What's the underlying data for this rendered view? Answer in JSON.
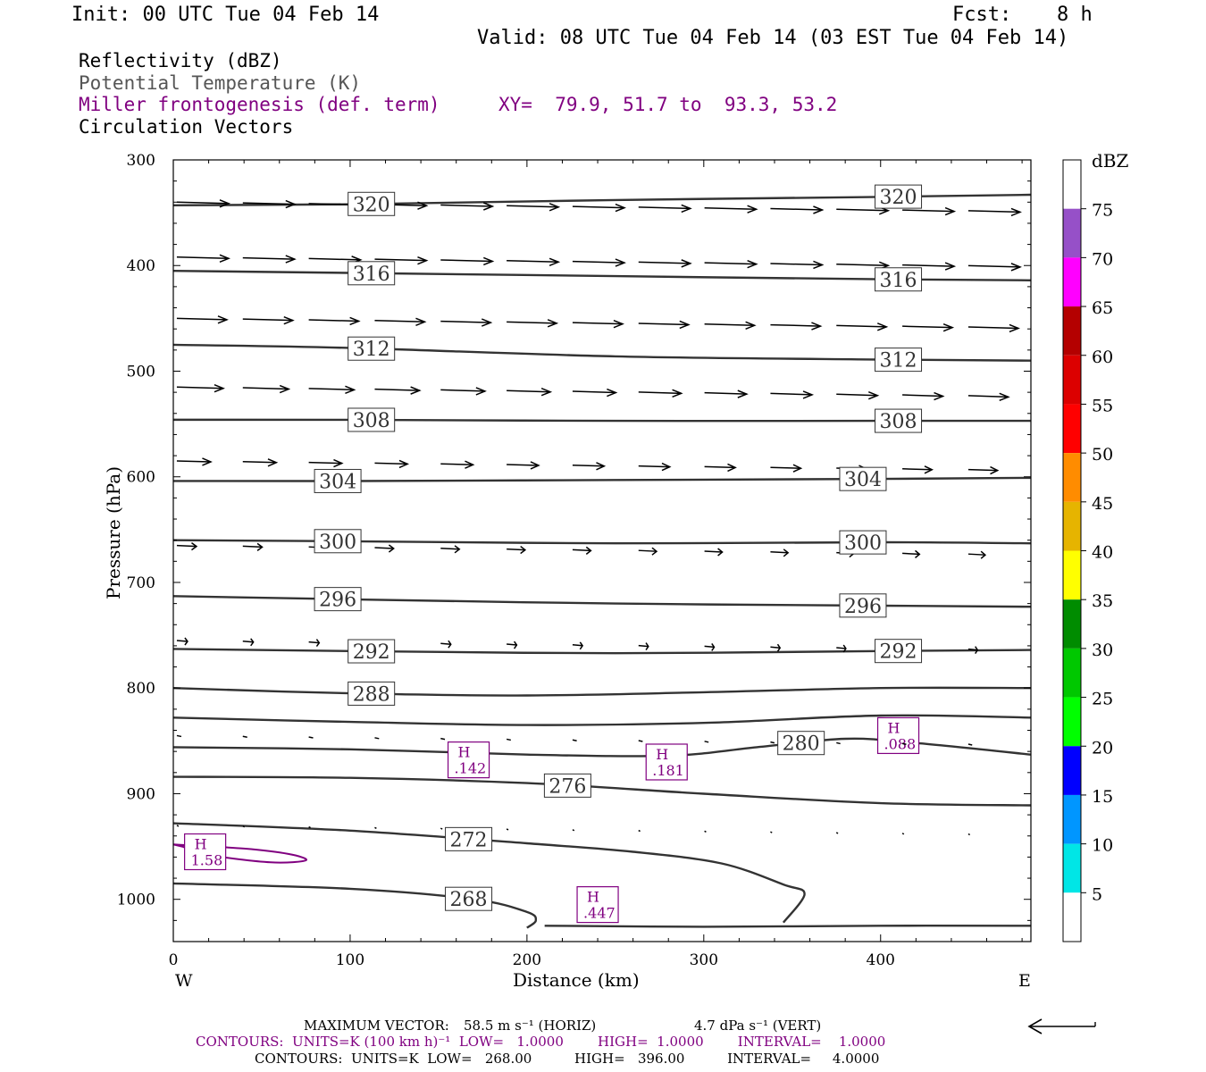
{
  "header": {
    "init": "Init: 00 UTC Tue 04 Feb 14",
    "fcst_label": "Fcst:",
    "fcst_value": "8 h",
    "valid": "Valid: 08 UTC Tue 04 Feb 14 (03 EST Tue 04 Feb 14)",
    "field1": "Reflectivity (dBZ)",
    "field2": "Potential Temperature (K)",
    "field3": "Miller frontogenesis (def. term)",
    "xy": "XY=  79.9, 51.7 to  93.3, 53.2",
    "field4": "Circulation Vectors"
  },
  "footer": {
    "max_vector_label": "MAXIMUM VECTOR:",
    "max_vector_horiz": "58.5 m s⁻¹ (HORIZ)",
    "max_vector_vert": "4.7 dPa s⁻¹ (VERT)",
    "contours_purple": "CONTOURS:  UNITS=K (100 km h)⁻¹  LOW=   1.0000        HIGH=  1.0000        INTERVAL=    1.0000",
    "contours_black": "CONTOURS:  UNITS=K  LOW=   268.00          HIGH=   396.00          INTERVAL=     4.0000"
  },
  "chart_data": {
    "type": "contour",
    "xlabel": "Distance (km)",
    "ylabel": "Pressure (hPa)",
    "x_left_label": "W",
    "x_right_label": "E",
    "xlim": [
      0,
      485
    ],
    "ylim": [
      300,
      1040
    ],
    "x_ticks": [
      0,
      100,
      200,
      300,
      400
    ],
    "y_ticks": [
      300,
      400,
      500,
      600,
      700,
      800,
      900,
      1000
    ],
    "theta_contours": [
      {
        "label": "320",
        "points": [
          [
            0,
            343
          ],
          [
            100,
            342
          ],
          [
            250,
            338
          ],
          [
            400,
            335
          ],
          [
            485,
            333
          ]
        ],
        "labels_at": [
          112,
          410
        ]
      },
      {
        "label": "316",
        "points": [
          [
            0,
            405
          ],
          [
            100,
            407
          ],
          [
            250,
            410
          ],
          [
            400,
            413
          ],
          [
            485,
            414
          ]
        ],
        "labels_at": [
          112,
          410
        ]
      },
      {
        "label": "312",
        "points": [
          [
            0,
            475
          ],
          [
            100,
            478
          ],
          [
            250,
            486
          ],
          [
            400,
            489
          ],
          [
            485,
            490
          ]
        ],
        "labels_at": [
          112,
          410
        ]
      },
      {
        "label": "308",
        "points": [
          [
            0,
            546
          ],
          [
            100,
            546
          ],
          [
            250,
            547
          ],
          [
            400,
            547
          ],
          [
            485,
            547
          ]
        ],
        "labels_at": [
          112,
          410
        ]
      },
      {
        "label": "304",
        "points": [
          [
            0,
            604
          ],
          [
            100,
            604
          ],
          [
            250,
            603
          ],
          [
            400,
            602
          ],
          [
            485,
            601
          ]
        ],
        "labels_at": [
          93,
          390
        ]
      },
      {
        "label": "300",
        "points": [
          [
            0,
            660
          ],
          [
            100,
            661
          ],
          [
            250,
            663
          ],
          [
            400,
            662
          ],
          [
            485,
            663
          ]
        ],
        "labels_at": [
          93,
          390
        ]
      },
      {
        "label": "296",
        "points": [
          [
            0,
            713
          ],
          [
            100,
            716
          ],
          [
            250,
            720
          ],
          [
            400,
            722
          ],
          [
            485,
            723
          ]
        ],
        "labels_at": [
          93,
          390
        ]
      },
      {
        "label": "292",
        "points": [
          [
            0,
            763
          ],
          [
            100,
            765
          ],
          [
            250,
            767
          ],
          [
            400,
            765
          ],
          [
            485,
            764
          ]
        ],
        "labels_at": [
          112,
          410
        ]
      },
      {
        "label": "288",
        "points": [
          [
            0,
            800
          ],
          [
            100,
            805
          ],
          [
            200,
            807
          ],
          [
            300,
            804
          ],
          [
            400,
            800
          ],
          [
            485,
            800
          ]
        ],
        "labels_at": [
          112
        ]
      },
      {
        "label": "",
        "points": [
          [
            0,
            828
          ],
          [
            100,
            832
          ],
          [
            200,
            835
          ],
          [
            300,
            833
          ],
          [
            400,
            826
          ],
          [
            485,
            828
          ]
        ],
        "labels_at": []
      },
      {
        "label": "280",
        "points": [
          [
            0,
            856
          ],
          [
            100,
            858
          ],
          [
            200,
            863
          ],
          [
            280,
            864
          ],
          [
            330,
            856
          ],
          [
            380,
            848
          ],
          [
            420,
            852
          ],
          [
            485,
            863
          ]
        ],
        "labels_at": [
          355
        ]
      },
      {
        "label": "276",
        "points": [
          [
            0,
            884
          ],
          [
            100,
            885
          ],
          [
            200,
            890
          ],
          [
            300,
            900
          ],
          [
            400,
            909
          ],
          [
            485,
            911
          ]
        ],
        "labels_at": [
          223
        ]
      },
      {
        "label": "272",
        "points": [
          [
            0,
            928
          ],
          [
            100,
            935
          ],
          [
            200,
            947
          ],
          [
            260,
            955
          ],
          [
            310,
            966
          ],
          [
            345,
            986
          ],
          [
            357,
            995
          ],
          [
            345,
            1022
          ]
        ],
        "labels_at": [
          167
        ]
      },
      {
        "label": "268",
        "points": [
          [
            0,
            985
          ],
          [
            100,
            990
          ],
          [
            170,
            1000
          ],
          [
            200,
            1012
          ],
          [
            205,
            1020
          ],
          [
            200,
            1027
          ]
        ],
        "labels_at": [
          167
        ]
      },
      {
        "label": "",
        "points": [
          [
            210,
            1025
          ],
          [
            300,
            1026
          ],
          [
            400,
            1025
          ],
          [
            485,
            1025
          ]
        ],
        "labels_at": []
      }
    ],
    "frontogenesis_maxima": [
      {
        "label": "H",
        "value": "1.58",
        "x": 18,
        "p": 955
      },
      {
        "label": "H",
        "value": ".142",
        "x": 167,
        "p": 868
      },
      {
        "label": "H",
        "value": ".181",
        "x": 279,
        "p": 870
      },
      {
        "label": "H",
        "value": ".088",
        "x": 410,
        "p": 845
      },
      {
        "label": "H",
        "value": ".447",
        "x": 240,
        "p": 1005
      }
    ],
    "frontogenesis_contour": {
      "points": [
        [
          0,
          948
        ],
        [
          40,
          952
        ],
        [
          65,
          957
        ],
        [
          75,
          963
        ],
        [
          55,
          965
        ],
        [
          20,
          958
        ],
        [
          5,
          950
        ]
      ]
    },
    "vector_levels_hPa": [
      340,
      392,
      450,
      515,
      585,
      665,
      755,
      845,
      930
    ],
    "vector_length_scale_m_s": 58.5,
    "colorbar": {
      "title": "dBZ",
      "ticks": [
        "5",
        "10",
        "15",
        "20",
        "25",
        "30",
        "35",
        "40",
        "45",
        "50",
        "55",
        "60",
        "65",
        "70",
        "75"
      ],
      "colors": [
        "#ffffff",
        "#00e6e6",
        "#0096ff",
        "#0000ff",
        "#00ff00",
        "#00c800",
        "#008c00",
        "#ffff00",
        "#e6b400",
        "#ff8c00",
        "#ff0000",
        "#dc0000",
        "#b40000",
        "#ff00ff",
        "#9650c8",
        "#ffffff"
      ]
    }
  }
}
